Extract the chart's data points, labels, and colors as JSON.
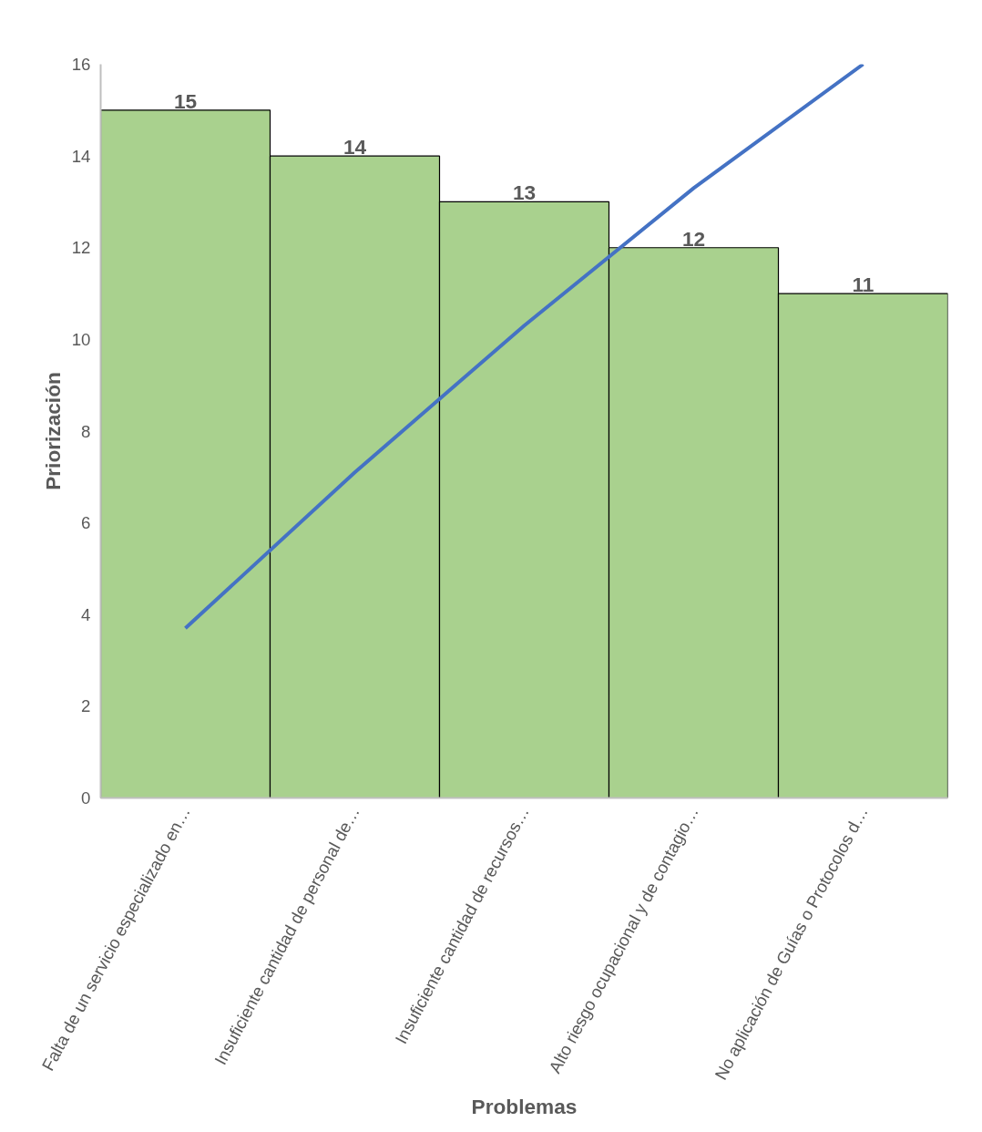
{
  "chart_data": {
    "type": "bar",
    "xlabel": "Problemas",
    "ylabel": "Priorización",
    "categories": [
      "Falta de un servicio especializado en…",
      "Insuficiente cantidad de personal de…",
      "Insuficiente cantidad de recursos…",
      "Alto riesgo ocupacional y de contagio…",
      "No aplicación de Guías o Protocolos d…"
    ],
    "series": [
      {
        "color": "#a9d18e",
        "values": [
          15,
          14,
          13,
          12,
          11
        ],
        "value_labels": [
          "15",
          "14",
          "13",
          "12",
          "11"
        ]
      },
      {
        "type": "line",
        "color": "#4472c4",
        "values": [
          3.7,
          7.1,
          10.3,
          13.3,
          16
        ]
      }
    ],
    "ylim": [
      0,
      16
    ],
    "yticks": [
      0,
      2,
      4,
      6,
      8,
      10,
      12,
      14,
      16
    ],
    "grid": false,
    "marker": "none",
    "line_style": "solid"
  }
}
